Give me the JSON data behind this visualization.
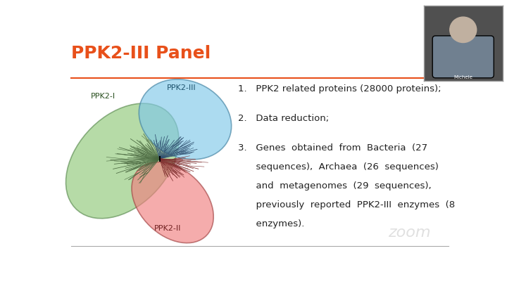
{
  "title": "PPK2-III Panel",
  "title_color": "#E8501A",
  "title_fontsize": 18,
  "bg_color": "#FFFFFF",
  "separator_color": "#E8501A",
  "bullet_points": [
    "PPK2 related proteins (28000 proteins);",
    "Data reduction;",
    "Genes obtained from Bacteria (27 sequences), Archaea (26 sequences) and metagenomes (29 sequences), previously reported PPK2-III enzymes (8 enzymes)."
  ],
  "ppk2_i_label": "PPK2-I",
  "ppk2_ii_label": "PPK2-II",
  "ppk2_iii_label": "PPK2-III",
  "ppk2_i_color": "#90C878",
  "ppk2_ii_color": "#F08080",
  "ppk2_iii_color": "#80C8E8",
  "ppk2_i_edge_color": "#5A8A50",
  "ppk2_ii_edge_color": "#A04040",
  "ppk2_iii_edge_color": "#4080A0",
  "tree_color_i": "#4A6840",
  "tree_color_ii": "#803030",
  "tree_color_iii": "#305070",
  "zoom_color": "#CCCCCC"
}
